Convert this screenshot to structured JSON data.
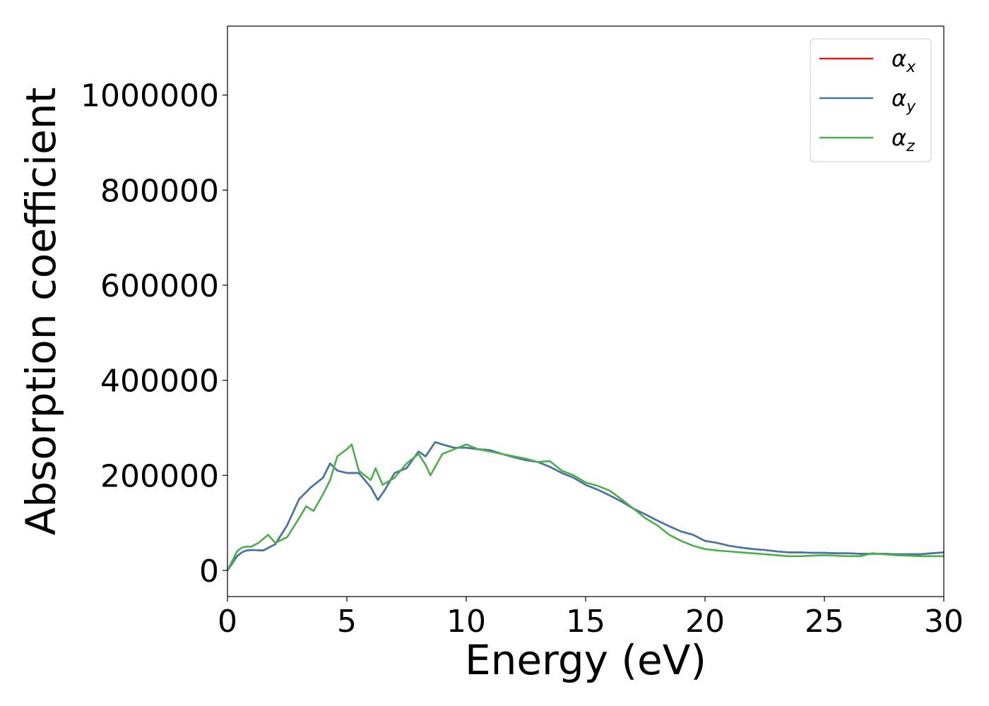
{
  "chart_data": {
    "type": "line",
    "title": "",
    "xlabel": "Energy (eV)",
    "ylabel": "Absorption coefficient",
    "xlim": [
      0,
      30
    ],
    "ylim": [
      -55000,
      1145000
    ],
    "xticks": [
      0,
      5,
      10,
      15,
      20,
      25,
      30
    ],
    "yticks": [
      0,
      200000,
      400000,
      600000,
      800000,
      1000000
    ],
    "grid": false,
    "legend_position": "top-right",
    "series": [
      {
        "name": "α",
        "subscript": "x",
        "color": "#e41a1c",
        "x": [
          0,
          0.2,
          0.4,
          0.6,
          0.8,
          1,
          1.5,
          2,
          2.5,
          3,
          3.5,
          4,
          4.3,
          4.6,
          5,
          5.5,
          6,
          6.3,
          6.6,
          7,
          7.5,
          8,
          8.3,
          8.7,
          9,
          9.5,
          10,
          10.5,
          11,
          11.5,
          12,
          12.5,
          13,
          13.5,
          14,
          14.5,
          15,
          15.5,
          16,
          16.5,
          17,
          17.5,
          18,
          18.5,
          19,
          19.5,
          20,
          20.5,
          21,
          21.5,
          22,
          22.5,
          23,
          23.5,
          24,
          24.5,
          25,
          25.5,
          26,
          26.5,
          27,
          27.5,
          28,
          28.5,
          29,
          29.5,
          30
        ],
        "y": [
          0,
          15000,
          30000,
          38000,
          42000,
          43000,
          42000,
          55000,
          95000,
          150000,
          175000,
          195000,
          225000,
          210000,
          205000,
          205000,
          175000,
          148000,
          170000,
          205000,
          215000,
          250000,
          240000,
          270000,
          265000,
          258000,
          258000,
          255000,
          253000,
          245000,
          238000,
          232000,
          228000,
          218000,
          205000,
          195000,
          180000,
          170000,
          158000,
          145000,
          130000,
          118000,
          105000,
          93000,
          82000,
          75000,
          62000,
          58000,
          52000,
          48000,
          45000,
          43000,
          40000,
          38000,
          38000,
          37000,
          37000,
          36000,
          36000,
          35000,
          35000,
          35000,
          34000,
          34000,
          34000,
          36000,
          38000
        ]
      },
      {
        "name": "α",
        "subscript": "y",
        "color": "#4477aa",
        "x": [
          0,
          0.2,
          0.4,
          0.6,
          0.8,
          1,
          1.5,
          2,
          2.5,
          3,
          3.5,
          4,
          4.3,
          4.6,
          5,
          5.5,
          6,
          6.3,
          6.6,
          7,
          7.5,
          8,
          8.3,
          8.7,
          9,
          9.5,
          10,
          10.5,
          11,
          11.5,
          12,
          12.5,
          13,
          13.5,
          14,
          14.5,
          15,
          15.5,
          16,
          16.5,
          17,
          17.5,
          18,
          18.5,
          19,
          19.5,
          20,
          20.5,
          21,
          21.5,
          22,
          22.5,
          23,
          23.5,
          24,
          24.5,
          25,
          25.5,
          26,
          26.5,
          27,
          27.5,
          28,
          28.5,
          29,
          29.5,
          30
        ],
        "y": [
          0,
          15000,
          30000,
          38000,
          42000,
          43000,
          42000,
          55000,
          95000,
          150000,
          175000,
          195000,
          225000,
          210000,
          205000,
          205000,
          175000,
          148000,
          170000,
          205000,
          215000,
          250000,
          240000,
          270000,
          265000,
          258000,
          258000,
          255000,
          253000,
          245000,
          238000,
          232000,
          228000,
          218000,
          205000,
          195000,
          180000,
          170000,
          158000,
          145000,
          130000,
          118000,
          105000,
          93000,
          82000,
          75000,
          62000,
          58000,
          52000,
          48000,
          45000,
          43000,
          40000,
          38000,
          38000,
          37000,
          37000,
          36000,
          36000,
          35000,
          35000,
          35000,
          34000,
          34000,
          34000,
          36000,
          38000
        ]
      },
      {
        "name": "α",
        "subscript": "z",
        "color": "#4daf4a",
        "x": [
          0,
          0.2,
          0.4,
          0.6,
          0.8,
          1,
          1.3,
          1.7,
          2,
          2.5,
          3,
          3.3,
          3.6,
          4,
          4.3,
          4.6,
          5,
          5.2,
          5.5,
          6,
          6.2,
          6.5,
          7,
          7.5,
          8,
          8.3,
          8.5,
          9,
          9.5,
          10,
          10.5,
          11,
          11.5,
          12,
          12.5,
          13,
          13.5,
          14,
          14.5,
          15,
          15.5,
          16,
          16.5,
          17,
          17.5,
          18,
          18.5,
          19,
          19.5,
          20,
          20.5,
          21,
          21.5,
          22,
          22.5,
          23,
          23.5,
          24,
          24.5,
          25,
          25.5,
          26,
          26.5,
          27,
          27.5,
          28,
          28.5,
          29,
          29.5,
          30
        ],
        "y": [
          0,
          20000,
          40000,
          48000,
          50000,
          50000,
          58000,
          75000,
          58000,
          70000,
          110000,
          135000,
          125000,
          160000,
          190000,
          240000,
          255000,
          265000,
          210000,
          190000,
          215000,
          180000,
          195000,
          225000,
          245000,
          222000,
          200000,
          245000,
          255000,
          265000,
          255000,
          250000,
          245000,
          240000,
          235000,
          228000,
          230000,
          210000,
          200000,
          185000,
          178000,
          168000,
          150000,
          130000,
          110000,
          95000,
          75000,
          62000,
          52000,
          45000,
          42000,
          40000,
          38000,
          36000,
          34000,
          32000,
          30000,
          30000,
          31000,
          32000,
          31000,
          30000,
          30000,
          36000,
          34000,
          32000,
          31000,
          30000,
          30000,
          30000
        ]
      }
    ]
  }
}
